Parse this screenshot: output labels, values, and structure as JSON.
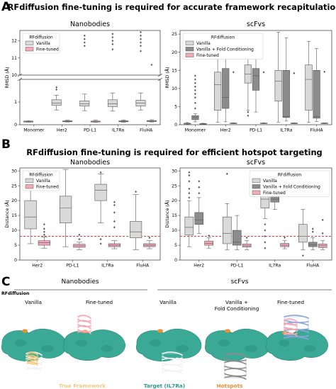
{
  "panels": {
    "a": {
      "letter": "A",
      "title": "RFdiffusion fine-tuning is required for accurate framework recapitulation"
    },
    "b": {
      "letter": "B",
      "title": "RFdiffusion fine-tuning is required for efficient hotspot targeting"
    },
    "c": {
      "letter": "C",
      "header_left": "Nanobodies",
      "header_right": "scFvs",
      "legend_label": "RFdiffusion",
      "col_labels": [
        "Vanilla",
        "Fine-tuned",
        "Vanilla",
        "Vanilla +\nFold Conditioning",
        "Fine-tuned"
      ],
      "captions": {
        "framework": "True Framework",
        "target": "Target (IL7Ra)",
        "hotspots": "Hotspots"
      }
    }
  },
  "colors": {
    "vanilla": "#d9d9d9",
    "fold": "#8c8c8c",
    "finetuned": "#f4a9b8",
    "threshold": "#d62728",
    "surface": "#3aa996",
    "framework_caption": "#f5c97b",
    "target_caption": "#2a9d8f",
    "hotspot_caption": "#f28e2b"
  },
  "chart_data": [
    {
      "id": "a-nanobodies",
      "type": "box",
      "title": "Nanobodies",
      "ylabel": "RMSD (Å)",
      "categories": [
        "Monomer",
        "Her2",
        "PD-L1",
        "IL7Ra",
        "FluHA"
      ],
      "broken_axis": {
        "lower_ylim": [
          0,
          2
        ],
        "upper_ylim": [
          10,
          12.6
        ]
      },
      "lower_yticks": [
        0,
        1
      ],
      "upper_yticks": [
        10,
        11,
        12
      ],
      "legend": {
        "title": "RFdiffusion",
        "entries": [
          "Vanilla",
          "Fine-tuned"
        ],
        "position": "upper-left"
      },
      "series": [
        {
          "name": "Vanilla",
          "boxes": [
            {
              "q1": 0.12,
              "median": 0.14,
              "q3": 0.16,
              "whislo": 0.11,
              "whishi": 0.17,
              "outliers": []
            },
            {
              "q1": 0.85,
              "median": 0.95,
              "q3": 1.1,
              "whislo": 0.65,
              "whishi": 1.3,
              "outliers": [
                1.55,
                1.65,
                11.8,
                11.9,
                12.0,
                12.1,
                12.2
              ]
            },
            {
              "q1": 0.82,
              "median": 0.92,
              "q3": 1.05,
              "whislo": 0.62,
              "whishi": 1.35,
              "outliers": [
                11.7,
                11.9,
                12.1,
                12.3
              ]
            },
            {
              "q1": 0.8,
              "median": 0.92,
              "q3": 1.1,
              "whislo": 0.6,
              "whishi": 1.4,
              "outliers": [
                11.5,
                11.8,
                12.0,
                12.2,
                12.4
              ]
            },
            {
              "q1": 0.82,
              "median": 0.95,
              "q3": 1.08,
              "whislo": 0.65,
              "whishi": 1.4,
              "outliers": [
                11.4,
                11.7,
                11.9,
                12.1,
                12.3,
                12.5
              ]
            }
          ]
        },
        {
          "name": "Fine-tuned",
          "boxes": [
            null,
            {
              "q1": 0.13,
              "median": 0.15,
              "q3": 0.17,
              "whislo": 0.12,
              "whishi": 0.2,
              "outliers": []
            },
            {
              "q1": 0.12,
              "median": 0.14,
              "q3": 0.16,
              "whislo": 0.11,
              "whishi": 0.2,
              "outliers": []
            },
            {
              "q1": 0.13,
              "median": 0.15,
              "q3": 0.17,
              "whislo": 0.11,
              "whishi": 0.21,
              "outliers": []
            },
            {
              "q1": 0.14,
              "median": 0.16,
              "q3": 0.18,
              "whislo": 0.12,
              "whishi": 0.22,
              "outliers": [
                10.6
              ]
            }
          ]
        }
      ]
    },
    {
      "id": "a-scfvs",
      "type": "box",
      "title": "scFvs",
      "ylabel": "RMSD (Å)",
      "categories": [
        "Monomer",
        "Her2",
        "PD-L1",
        "IL7Ra",
        "FluHA"
      ],
      "ylim": [
        0,
        26
      ],
      "yticks": [
        0,
        5,
        10,
        15,
        20,
        25
      ],
      "legend": {
        "title": "RFdiffusion",
        "entries": [
          "Vanilla",
          "Vanilla + Fold Conditioning",
          "Fine-tuned"
        ],
        "position": "upper-left"
      },
      "series": [
        {
          "name": "Vanilla",
          "boxes": [
            {
              "q1": 0.2,
              "median": 0.3,
              "q3": 0.4,
              "whislo": 0.1,
              "whishi": 0.6,
              "outliers": []
            },
            {
              "q1": 4.0,
              "median": 11.0,
              "q3": 14.5,
              "whislo": 0.7,
              "whishi": 22.5,
              "outliers": []
            },
            {
              "q1": 11.5,
              "median": 14.0,
              "q3": 16.5,
              "whislo": 4.0,
              "whishi": 24.0,
              "outliers": [
                2.5,
                3.5
              ]
            },
            {
              "q1": 6.5,
              "median": 12.0,
              "q3": 15.0,
              "whislo": 0.7,
              "whishi": 25.5,
              "outliers": []
            },
            {
              "q1": 4.0,
              "median": 12.5,
              "q3": 16.5,
              "whislo": 0.7,
              "whishi": 23.0,
              "outliers": []
            }
          ]
        },
        {
          "name": "Vanilla + Fold Conditioning",
          "boxes": [
            {
              "q1": 1.4,
              "median": 2.0,
              "q3": 2.5,
              "whislo": 0.8,
              "whishi": 3.0,
              "outliers": [
                4.5,
                6.0,
                7.5,
                8.5,
                9.5,
                10.5,
                11.5,
                12.5,
                13.5
              ]
            },
            {
              "q1": 4.5,
              "median": 7.5,
              "q3": 15.5,
              "whislo": 0.8,
              "whishi": 19.5,
              "outliers": []
            },
            {
              "q1": 9.5,
              "median": 13.5,
              "q3": 15.5,
              "whislo": 3.5,
              "whishi": 21.0,
              "outliers": [
                24.0
              ]
            },
            {
              "q1": 2.0,
              "median": 2.2,
              "q3": 15.0,
              "whislo": 1.0,
              "whishi": 24.0,
              "outliers": []
            },
            {
              "q1": 1.8,
              "median": 2.2,
              "q3": 15.0,
              "whislo": 0.9,
              "whishi": 21.0,
              "outliers": []
            }
          ]
        },
        {
          "name": "Fine-tuned",
          "boxes": [
            {
              "q1": 0.2,
              "median": 0.25,
              "q3": 0.3,
              "whislo": 0.15,
              "whishi": 0.4,
              "outliers": []
            },
            {
              "q1": 0.35,
              "median": 0.4,
              "q3": 0.45,
              "whislo": 0.3,
              "whishi": 0.5,
              "outliers": [
                14.5
              ]
            },
            {
              "q1": 0.35,
              "median": 0.4,
              "q3": 0.45,
              "whislo": 0.3,
              "whishi": 0.5,
              "outliers": [
                14.5
              ]
            },
            {
              "q1": 0.35,
              "median": 0.4,
              "q3": 0.45,
              "whislo": 0.3,
              "whishi": 0.5,
              "outliers": [
                14.2
              ]
            },
            {
              "q1": 0.35,
              "median": 0.4,
              "q3": 0.45,
              "whislo": 0.3,
              "whishi": 0.5,
              "outliers": [
                14.6
              ]
            }
          ]
        }
      ]
    },
    {
      "id": "b-nanobodies",
      "type": "box",
      "title": "Nanobodies",
      "ylabel": "Distance (Å)",
      "categories": [
        "Her2",
        "PD-L1",
        "IL7Ra",
        "FluHA"
      ],
      "ylim": [
        0,
        31
      ],
      "yticks": [
        0,
        5,
        10,
        15,
        20,
        25,
        30
      ],
      "threshold": 8,
      "legend": {
        "title": "RFdiffusion",
        "entries": [
          "Vanilla",
          "Fine-tuned"
        ],
        "position": "upper-left"
      },
      "series": [
        {
          "name": "Vanilla",
          "boxes": [
            {
              "q1": 10.5,
              "median": 14.5,
              "q3": 20.0,
              "whislo": 5.5,
              "whishi": 29.5,
              "outliers": []
            },
            {
              "q1": 12.5,
              "median": 17.5,
              "q3": 21.5,
              "whislo": 4.5,
              "whishi": 30.5,
              "outliers": []
            },
            {
              "q1": 20.0,
              "median": 23.5,
              "q3": 25.5,
              "whislo": 12.5,
              "whishi": 29.0,
              "outliers": [
                5.5,
                7.0,
                29.5
              ]
            },
            {
              "q1": 7.5,
              "median": 9.5,
              "q3": 13.0,
              "whislo": 3.5,
              "whishi": 22.0,
              "outliers": [
                23.0
              ]
            }
          ]
        },
        {
          "name": "Fine-tuned",
          "boxes": [
            {
              "q1": 5.0,
              "median": 5.8,
              "q3": 6.5,
              "whislo": 4.0,
              "whishi": 7.8,
              "outliers": [
                8.5,
                9.5,
                10.5,
                12.0
              ]
            },
            {
              "q1": 4.3,
              "median": 4.8,
              "q3": 5.3,
              "whislo": 3.5,
              "whishi": 6.0,
              "outliers": [
                7.0,
                8.5
              ]
            },
            {
              "q1": 4.5,
              "median": 5.0,
              "q3": 5.5,
              "whislo": 3.8,
              "whishi": 6.5,
              "outliers": [
                11.0,
                13.0,
                16.0,
                18.5,
                19.5
              ]
            },
            {
              "q1": 4.5,
              "median": 5.0,
              "q3": 5.5,
              "whislo": 3.8,
              "whishi": 6.5,
              "outliers": [
                7.5
              ]
            }
          ]
        }
      ]
    },
    {
      "id": "b-scfvs",
      "type": "box",
      "title": "scFvs",
      "ylabel": "Distance (Å)",
      "categories": [
        "Her2",
        "PD-L1",
        "IL7Ra",
        "FluHA"
      ],
      "ylim": [
        0,
        31
      ],
      "yticks": [
        0,
        5,
        10,
        15,
        20,
        25,
        30
      ],
      "threshold": 8,
      "legend": {
        "title": "RFdiffusion",
        "entries": [
          "Vanilla",
          "Vanilla + Fold Conditioning",
          "Fine-tuned"
        ],
        "position": "upper-right"
      },
      "series": [
        {
          "name": "Vanilla",
          "boxes": [
            {
              "q1": 8.5,
              "median": 11.0,
              "q3": 14.5,
              "whislo": 4.5,
              "whishi": 20.0,
              "outliers": [
                21.0,
                22.5,
                24.0,
                26.5,
                28.5,
                29.5
              ]
            },
            {
              "q1": 5.5,
              "median": 9.0,
              "q3": 14.5,
              "whislo": 3.5,
              "whishi": 19.0,
              "outliers": [
                29.0
              ]
            },
            {
              "q1": 17.5,
              "median": 20.5,
              "q3": 22.5,
              "whislo": 14.0,
              "whishi": 25.0,
              "outliers": [
                4.0,
                6.0,
                8.0,
                10.0,
                12.0
              ]
            },
            {
              "q1": 6.0,
              "median": 8.0,
              "q3": 12.0,
              "whislo": 3.5,
              "whishi": 17.0,
              "outliers": [
                1.5
              ]
            }
          ]
        },
        {
          "name": "Vanilla + Fold Conditioning",
          "boxes": [
            {
              "q1": 12.0,
              "median": 13.5,
              "q3": 16.0,
              "whislo": 9.0,
              "whishi": 21.0,
              "outliers": [
                22.5,
                24.5,
                26.5
              ]
            },
            {
              "q1": 5.0,
              "median": 6.0,
              "q3": 10.0,
              "whislo": 3.5,
              "whishi": 15.0,
              "outliers": []
            },
            {
              "q1": 19.5,
              "median": 20.5,
              "q3": 22.0,
              "whislo": 17.0,
              "whishi": 24.0,
              "outliers": [
                25.5,
                27.0
              ]
            },
            {
              "q1": 4.5,
              "median": 5.2,
              "q3": 6.0,
              "whislo": 3.5,
              "whishi": 7.5,
              "outliers": [
                9.5,
                10.5
              ]
            }
          ]
        },
        {
          "name": "Fine-tuned",
          "boxes": [
            {
              "q1": 5.0,
              "median": 5.6,
              "q3": 6.4,
              "whislo": 4.0,
              "whishi": 7.5,
              "outliers": [
                8.2
              ]
            },
            {
              "q1": 4.4,
              "median": 4.8,
              "q3": 5.4,
              "whislo": 3.5,
              "whishi": 6.5,
              "outliers": [
                7.5
              ]
            },
            {
              "q1": 4.5,
              "median": 5.0,
              "q3": 5.6,
              "whislo": 3.8,
              "whishi": 6.5,
              "outliers": [
                7.6
              ]
            },
            {
              "q1": 4.2,
              "median": 4.8,
              "q3": 5.4,
              "whislo": 3.5,
              "whishi": 6.5,
              "outliers": [
                9.0,
                13.5
              ]
            }
          ]
        }
      ]
    }
  ]
}
